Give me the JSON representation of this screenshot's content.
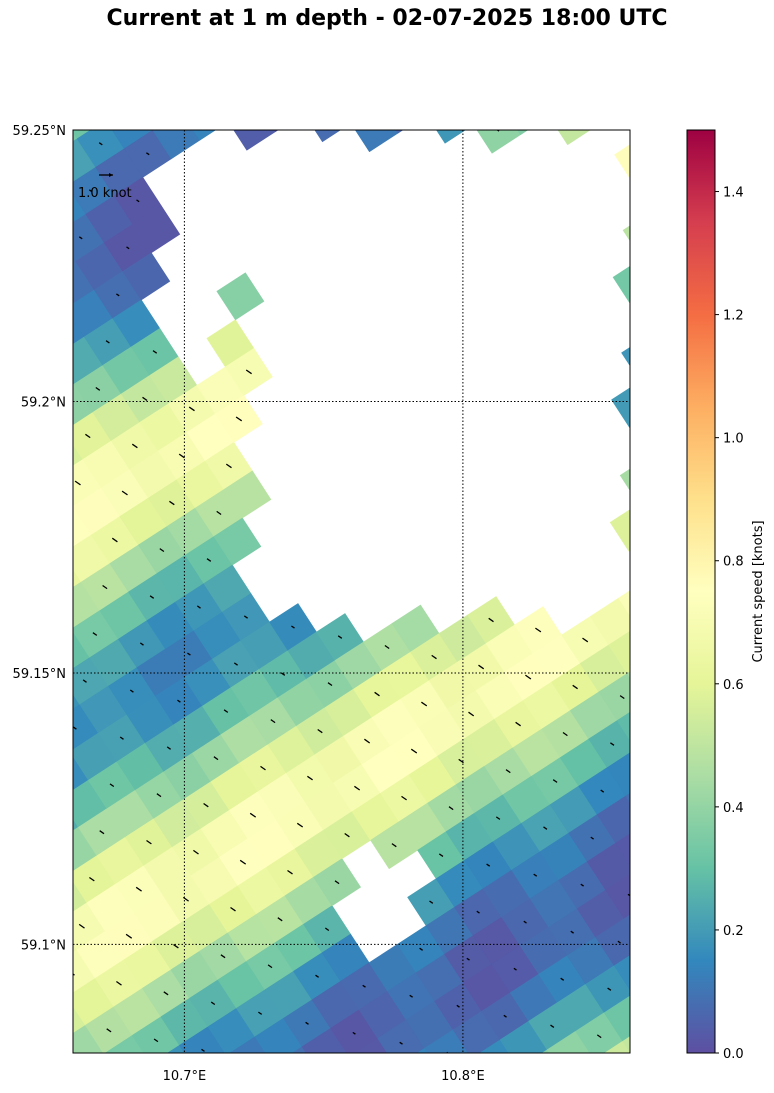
{
  "title": "Current at 1 m depth - 02-07-2025 18:00 UTC",
  "chart_data": {
    "type": "heatmap",
    "title": "Current at 1 m depth - 02-07-2025 18:00 UTC",
    "x_axis": {
      "ticks": [
        10.7,
        10.8
      ],
      "tick_labels": [
        "10.7°E",
        "10.8°E"
      ],
      "range": [
        10.66,
        10.86
      ]
    },
    "y_axis": {
      "ticks": [
        59.1,
        59.15,
        59.2,
        59.25
      ],
      "tick_labels": [
        "59.1°N",
        "59.15°N",
        "59.2°N",
        "59.25°N"
      ],
      "range": [
        59.08,
        59.25
      ]
    },
    "grid": true,
    "grid_style": "dotted",
    "colorbar": {
      "label": "Current speed [knots]",
      "range": [
        0,
        1.5
      ],
      "ticks": [
        0.0,
        0.2,
        0.4,
        0.6,
        0.8,
        1.0,
        1.2,
        1.4
      ],
      "tick_labels": [
        "0.0",
        "0.2",
        "0.4",
        "0.6",
        "0.8",
        "1.0",
        "1.2",
        "1.4"
      ],
      "colormap": "Spectral_r",
      "colormap_stops": [
        "#5e4fa2",
        "#3288bd",
        "#66c2a5",
        "#abdda4",
        "#e6f598",
        "#ffffbf",
        "#fee08b",
        "#fdae61",
        "#f46d43",
        "#d53e4f",
        "#9e0142"
      ]
    },
    "reference_vector": {
      "label": "1.0 knot",
      "speed": 1.0
    },
    "grid_rotation_deg": -33,
    "speed_field": {
      "description_free": true,
      "band_pattern": [
        0.05,
        0.1,
        0.2,
        0.35,
        0.55,
        0.68,
        0.72,
        0.62,
        0.45,
        0.3,
        0.2,
        0.15,
        0.18,
        0.28,
        0.42,
        0.58,
        0.7,
        0.72,
        0.6,
        0.45,
        0.3,
        0.18,
        0.1,
        0.06
      ],
      "masked_regions": [
        {
          "lon": [
            10.725,
            10.86
          ],
          "lat": [
            59.16,
            59.25
          ]
        },
        {
          "lon": [
            10.69,
            10.71
          ],
          "lat": [
            59.205,
            59.245
          ]
        },
        {
          "lon": [
            10.7,
            10.725
          ],
          "lat": [
            59.22,
            59.25
          ]
        },
        {
          "lon": [
            10.755,
            10.785
          ],
          "lat": [
            59.1,
            59.115
          ]
        }
      ]
    },
    "arrow_direction": "southeast"
  }
}
